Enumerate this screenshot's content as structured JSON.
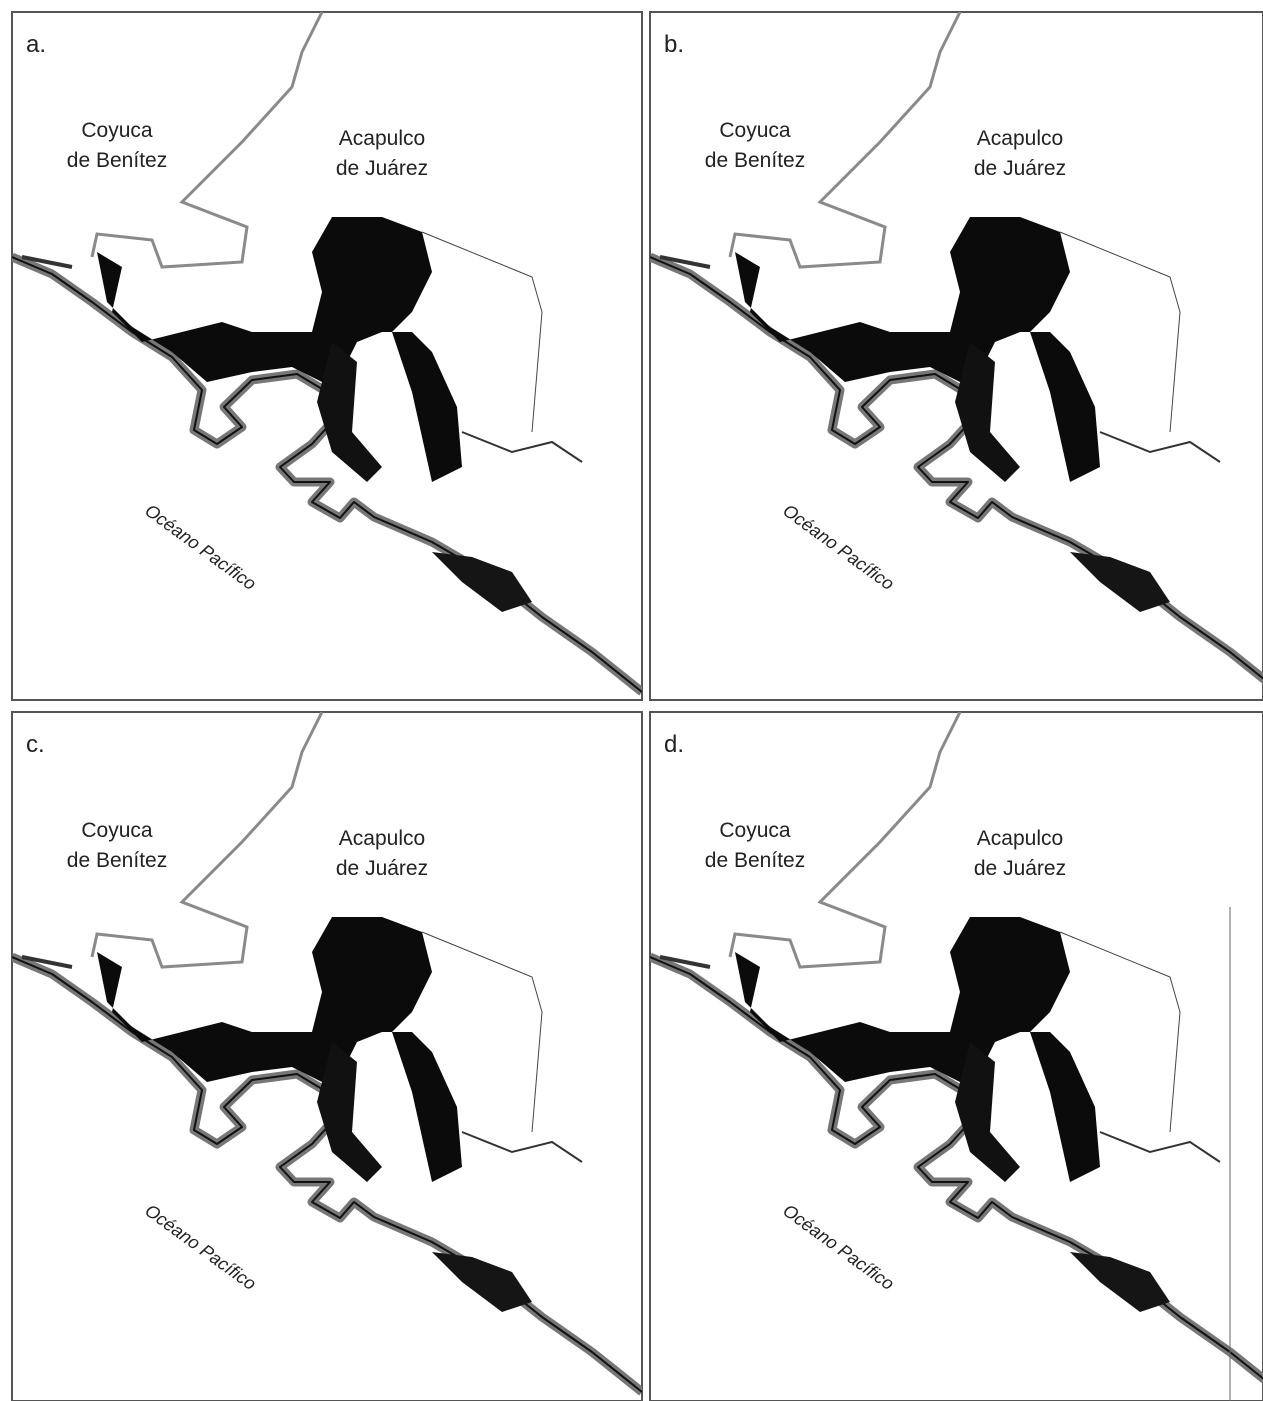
{
  "panels": [
    {
      "label": "a.",
      "municipalities": [
        {
          "lines": [
            "Coyuca",
            "de Benítez"
          ]
        },
        {
          "lines": [
            "Acapulco",
            "de Juárez"
          ]
        }
      ],
      "ocean": "Océano Pacífico"
    },
    {
      "label": "b.",
      "municipalities": [
        {
          "lines": [
            "Coyuca",
            "de Benítez"
          ]
        },
        {
          "lines": [
            "Acapulco",
            "de Juárez"
          ]
        }
      ],
      "ocean": "Océano Pacífico"
    },
    {
      "label": "c.",
      "municipalities": [
        {
          "lines": [
            "Coyuca",
            "de Benítez"
          ]
        },
        {
          "lines": [
            "Acapulco",
            "de Juárez"
          ]
        }
      ],
      "ocean": "Océano Pacífico"
    },
    {
      "label": "d.",
      "municipalities": [
        {
          "lines": [
            "Coyuca",
            "de Benítez"
          ]
        },
        {
          "lines": [
            "Acapulco",
            "de Juárez"
          ]
        }
      ],
      "ocean": "Océano Pacífico"
    }
  ]
}
